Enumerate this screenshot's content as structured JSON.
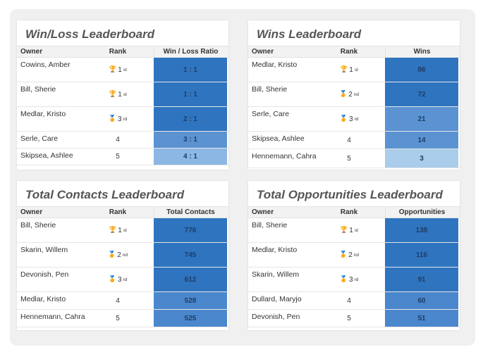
{
  "boards": [
    {
      "title": "Win/Loss Leaderboard",
      "columns": [
        "Owner",
        "Rank",
        "Win / Loss Ratio"
      ],
      "rows": [
        {
          "owner": "Cowins, Amber",
          "rank": "1",
          "suffix": "st",
          "medal": "gold",
          "value": "1 : 1",
          "color": "#2f74bf"
        },
        {
          "owner": "Bill, Sherie",
          "rank": "1",
          "suffix": "st",
          "medal": "gold",
          "value": "1 : 1",
          "color": "#2f74bf"
        },
        {
          "owner": "Medlar, Kristo",
          "rank": "3",
          "suffix": "rd",
          "medal": "bronze",
          "value": "2 : 1",
          "color": "#2f74bf"
        },
        {
          "owner": "Serle, Care",
          "rank": "4",
          "suffix": "",
          "medal": "",
          "value": "3 : 1",
          "color": "#5b93d2"
        },
        {
          "owner": "Skipsea, Ashlee",
          "rank": "5",
          "suffix": "",
          "medal": "",
          "value": "4 : 1",
          "color": "#8cb6e4"
        }
      ]
    },
    {
      "title": "Wins Leaderboard",
      "columns": [
        "Owner",
        "Rank",
        "Wins"
      ],
      "rows": [
        {
          "owner": "Medlar, Kristo",
          "rank": "1",
          "suffix": "st",
          "medal": "gold",
          "value": "86",
          "color": "#2f74bf"
        },
        {
          "owner": "Bill, Sherie",
          "rank": "2",
          "suffix": "nd",
          "medal": "silver",
          "value": "72",
          "color": "#2f74bf"
        },
        {
          "owner": "Serle, Care",
          "rank": "3",
          "suffix": "rd",
          "medal": "bronze",
          "value": "21",
          "color": "#5b93d2"
        },
        {
          "owner": "Skipsea, Ashlee",
          "rank": "4",
          "suffix": "",
          "medal": "",
          "value": "14",
          "color": "#5b93d2"
        },
        {
          "owner": "Hennemann, Cahra",
          "rank": "5",
          "suffix": "",
          "medal": "",
          "value": "3",
          "color": "#a9cdea"
        }
      ]
    },
    {
      "title": "Total Contacts Leaderboard",
      "columns": [
        "Owner",
        "Rank",
        "Total Contacts"
      ],
      "rows": [
        {
          "owner": "Bill, Sherie",
          "rank": "1",
          "suffix": "st",
          "medal": "gold",
          "value": "776",
          "color": "#2f74bf"
        },
        {
          "owner": "Skarin, Willem",
          "rank": "2",
          "suffix": "nd",
          "medal": "silver",
          "value": "745",
          "color": "#2f74bf"
        },
        {
          "owner": "Devonish, Pen",
          "rank": "3",
          "suffix": "rd",
          "medal": "bronze",
          "value": "612",
          "color": "#2f74bf"
        },
        {
          "owner": "Medlar, Kristo",
          "rank": "4",
          "suffix": "",
          "medal": "",
          "value": "528",
          "color": "#4a87cc"
        },
        {
          "owner": "Hennemann, Cahra",
          "rank": "5",
          "suffix": "",
          "medal": "",
          "value": "525",
          "color": "#4a87cc"
        }
      ]
    },
    {
      "title": "Total Opportunities Leaderboard",
      "columns": [
        "Owner",
        "Rank",
        "Opportunities"
      ],
      "rows": [
        {
          "owner": "Bill, Sherie",
          "rank": "1",
          "suffix": "st",
          "medal": "gold",
          "value": "138",
          "color": "#2f74bf"
        },
        {
          "owner": "Medlar, Kristo",
          "rank": "2",
          "suffix": "nd",
          "medal": "silver",
          "value": "116",
          "color": "#2f74bf"
        },
        {
          "owner": "Skarin, Willem",
          "rank": "3",
          "suffix": "rd",
          "medal": "bronze",
          "value": "91",
          "color": "#2f74bf"
        },
        {
          "owner": "Dullard, Maryjo",
          "rank": "4",
          "suffix": "",
          "medal": "",
          "value": "60",
          "color": "#4a87cc"
        },
        {
          "owner": "Devonish, Pen",
          "rank": "5",
          "suffix": "",
          "medal": "",
          "value": "51",
          "color": "#4a87cc"
        }
      ]
    }
  ]
}
